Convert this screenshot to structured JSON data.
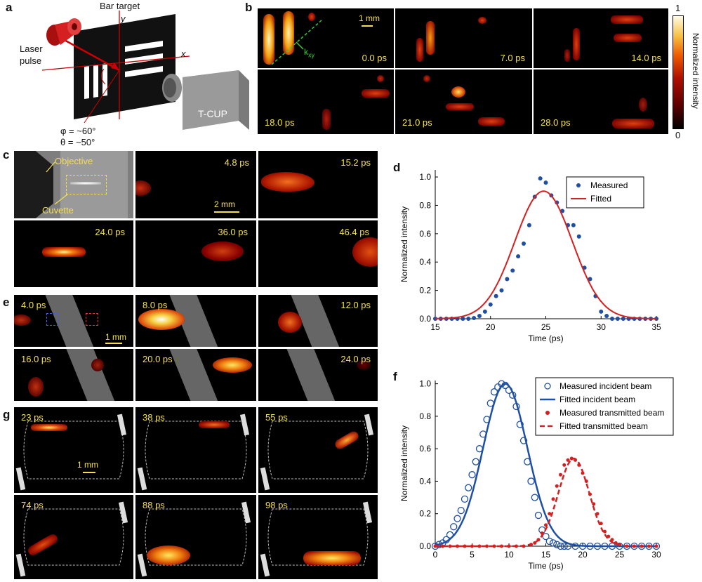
{
  "panels": {
    "a": {
      "letter": "a",
      "bar_target": "Bar target",
      "laser": [
        "Laser",
        "pulse"
      ],
      "axis_y": "y",
      "axis_x": "x",
      "camera": "T-CUP",
      "phi": "φ = ~60°",
      "theta": "θ = ~50°",
      "colors": {
        "laser": "#d42020",
        "plate": "#111111",
        "camera": "#9a9a9a"
      }
    },
    "b": {
      "letter": "b",
      "scale": "1 mm",
      "kxy": "k",
      "kxy_sub": "xy",
      "frames": [
        "0.0 ps",
        "7.0 ps",
        "14.0 ps",
        "18.0 ps",
        "21.0 ps",
        "28.0 ps"
      ],
      "colorbar": {
        "max": "1",
        "min": "0",
        "label": "Normalized intensity"
      }
    },
    "c": {
      "letter": "c",
      "objective": "Objective",
      "cuvette": "Cuvette",
      "scale": "2 mm",
      "frames": [
        "4.8 ps",
        "15.2 ps",
        "24.0 ps",
        "36.0 ps",
        "46.4 ps"
      ]
    },
    "e": {
      "letter": "e",
      "scale": "1 mm",
      "frames": [
        "4.0 ps",
        "8.0 ps",
        "12.0 ps",
        "16.0 ps",
        "20.0 ps",
        "24.0 ps"
      ]
    },
    "g": {
      "letter": "g",
      "scale": "1 mm",
      "frames": [
        "23 ps",
        "38 ps",
        "55 ps",
        "74 ps",
        "88 ps",
        "98 ps"
      ]
    }
  },
  "chart_data": [
    {
      "id": "d",
      "letter": "d",
      "type": "scatter",
      "xlabel": "Time (ps)",
      "ylabel": "Normalized intensity",
      "xlim": [
        15,
        35
      ],
      "ylim": [
        0,
        1.05
      ],
      "xticks": [
        15,
        20,
        25,
        30,
        35
      ],
      "yticks": [
        0.0,
        0.2,
        0.4,
        0.6,
        0.8,
        1.0
      ],
      "ytick_labels": [
        "0.0",
        "0.2",
        "0.4",
        "0.6",
        "0.8",
        "1.0"
      ],
      "legend": [
        "Measured",
        "Fitted"
      ],
      "colors": {
        "measured": "#1f4fa3",
        "fitted": "#d42020"
      },
      "series": [
        {
          "name": "Measured",
          "kind": "points",
          "x": [
            15,
            15.5,
            16,
            16.5,
            17,
            17.5,
            18,
            18.5,
            19,
            19.5,
            20,
            20.5,
            21,
            21.5,
            22,
            22.5,
            23,
            23.5,
            24,
            24.5,
            25,
            25.5,
            26,
            26.5,
            27,
            27.5,
            28,
            28.5,
            29,
            29.5,
            30,
            30.5,
            31,
            31.5,
            32,
            32.5,
            33,
            33.5,
            34,
            34.5,
            35
          ],
          "y": [
            0,
            0,
            0,
            0,
            0,
            0,
            0,
            0.005,
            0.02,
            0.05,
            0.1,
            0.16,
            0.2,
            0.28,
            0.34,
            0.44,
            0.53,
            0.66,
            0.86,
            0.99,
            0.96,
            0.87,
            0.82,
            0.76,
            0.66,
            0.66,
            0.58,
            0.36,
            0.28,
            0.16,
            0.05,
            0.02,
            0,
            0,
            0,
            0,
            0,
            0,
            0,
            0,
            0
          ]
        },
        {
          "name": "Fitted",
          "kind": "gaussian",
          "amp": 0.9,
          "mu": 24.8,
          "sigma": 2.6
        }
      ]
    },
    {
      "id": "f",
      "letter": "f",
      "type": "scatter",
      "xlabel": "Time (ps)",
      "ylabel": "Normalized intensity",
      "xlim": [
        0,
        30
      ],
      "ylim": [
        0,
        1.02
      ],
      "xticks": [
        0,
        5,
        10,
        15,
        20,
        25,
        30
      ],
      "yticks": [
        0,
        0.2,
        0.4,
        0.6,
        0.8,
        1.0
      ],
      "ytick_labels": [
        "0.0",
        "0.2",
        "0.4",
        "0.6",
        "0.8",
        "1.0"
      ],
      "legend": [
        "Measured incident beam",
        "Fitted incident beam",
        "Measured transmitted beam",
        "Fitted transmitted beam"
      ],
      "colors": {
        "incident": "#1f4fa3",
        "transmitted": "#d42020"
      },
      "series": [
        {
          "name": "Measured incident beam",
          "kind": "points",
          "x": [
            0,
            0.5,
            1,
            1.5,
            2,
            2.5,
            3,
            3.5,
            4,
            4.5,
            5,
            5.5,
            6,
            6.5,
            7,
            7.5,
            8,
            8.5,
            9,
            9.5,
            10,
            10.5,
            11,
            11.5,
            12,
            12.5,
            13,
            13.5,
            14,
            14.5,
            15,
            15.5,
            16,
            16.5,
            17,
            17.5,
            18,
            19,
            20,
            21,
            22,
            23,
            24,
            25,
            26,
            27,
            28,
            29,
            30
          ],
          "y": [
            0,
            0.01,
            0.02,
            0.04,
            0.07,
            0.12,
            0.17,
            0.22,
            0.29,
            0.36,
            0.44,
            0.52,
            0.6,
            0.69,
            0.78,
            0.88,
            0.95,
            0.98,
            1.0,
            0.99,
            0.96,
            0.93,
            0.86,
            0.75,
            0.65,
            0.52,
            0.4,
            0.3,
            0.19,
            0.1,
            0.06,
            0.03,
            0.02,
            0.01,
            0,
            0,
            0,
            0,
            0,
            0,
            0,
            0,
            0,
            0,
            0,
            0,
            0,
            0,
            0
          ]
        },
        {
          "name": "Fitted incident beam",
          "kind": "gaussian",
          "amp": 1.0,
          "mu": 9.5,
          "sigma": 3.0
        },
        {
          "name": "Measured transmitted beam",
          "kind": "points",
          "x": [
            0,
            1,
            2,
            3,
            4,
            5,
            6,
            7,
            8,
            9,
            10,
            11,
            12,
            13,
            13.5,
            14,
            14.5,
            15,
            15.5,
            16,
            16.5,
            17,
            17.5,
            18,
            18.5,
            19,
            19.5,
            20,
            20.5,
            21,
            21.5,
            22,
            22.5,
            23,
            23.5,
            24,
            24.5,
            25,
            26,
            27,
            28,
            29,
            30
          ],
          "y": [
            0,
            0,
            0,
            0,
            0,
            0,
            0,
            0,
            0,
            0,
            0,
            0,
            0,
            0.01,
            0.02,
            0.04,
            0.08,
            0.13,
            0.2,
            0.29,
            0.37,
            0.44,
            0.5,
            0.53,
            0.54,
            0.53,
            0.5,
            0.45,
            0.4,
            0.32,
            0.26,
            0.2,
            0.14,
            0.09,
            0.06,
            0.04,
            0.02,
            0.01,
            0,
            0,
            0,
            0,
            0
          ]
        },
        {
          "name": "Fitted transmitted beam",
          "kind": "gaussian",
          "amp": 0.54,
          "mu": 18.8,
          "sigma": 2.1
        }
      ]
    }
  ]
}
